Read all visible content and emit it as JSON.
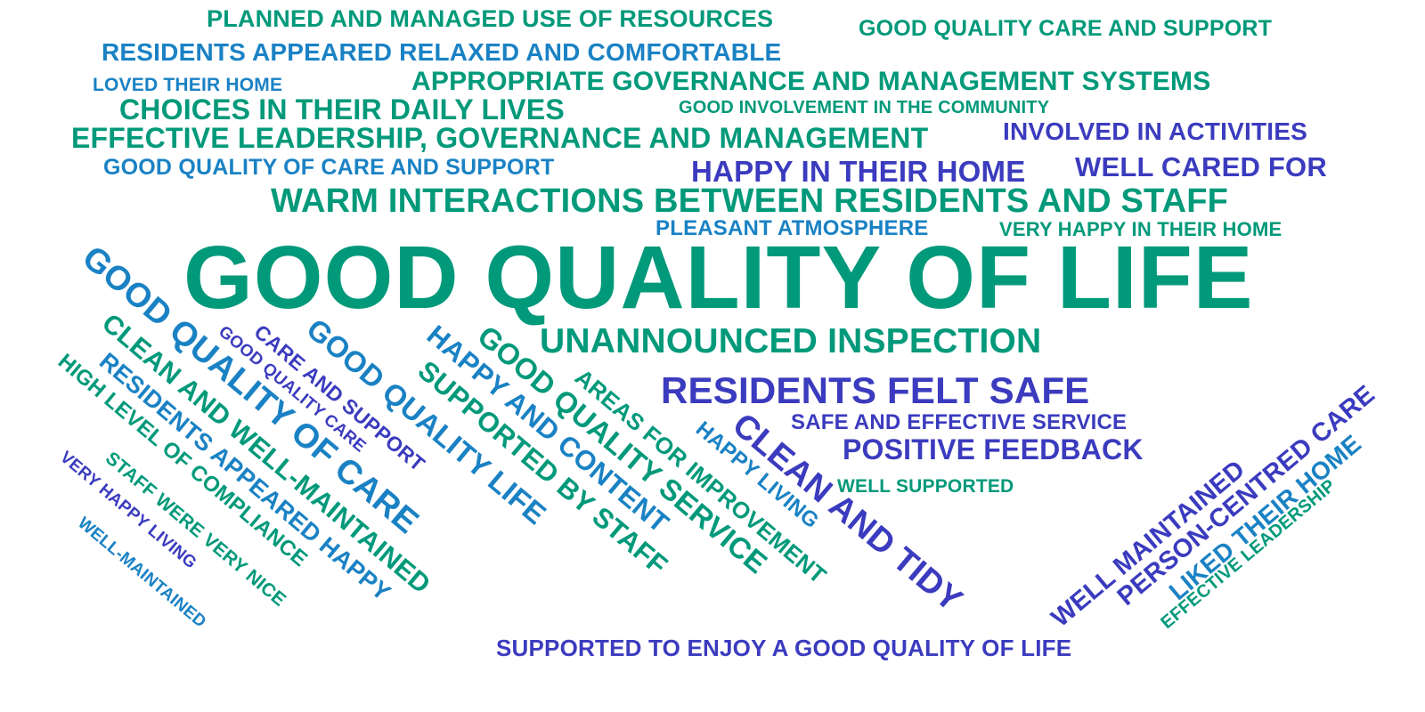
{
  "phrases": {
    "planned_resources": "PLANNED AND MANAGED USE OF RESOURCES",
    "good_quality_care_and_support": "GOOD QUALITY CARE AND SUPPORT",
    "residents_relaxed": "RESIDENTS APPEARED RELAXED AND COMFORTABLE",
    "loved_home": "LOVED THEIR HOME",
    "appropriate_governance": "APPROPRIATE GOVERNANCE AND MANAGEMENT SYSTEMS",
    "choices_daily": "CHOICES IN THEIR DAILY LIVES",
    "good_involvement": "GOOD INVOLVEMENT IN THE COMMUNITY",
    "effective_leadership_gov": "EFFECTIVE LEADERSHIP, GOVERNANCE AND MANAGEMENT",
    "involved_activities": "INVOLVED IN ACTIVITIES",
    "good_quality_of_care_and_support": "GOOD QUALITY OF CARE AND SUPPORT",
    "happy_in_home": "HAPPY IN THEIR HOME",
    "well_cared_for": "WELL CARED FOR",
    "warm_interactions": "WARM INTERACTIONS BETWEEN RESIDENTS AND STAFF",
    "pleasant_atmosphere": "PLEASANT ATMOSPHERE",
    "very_happy_home": "VERY HAPPY IN THEIR HOME",
    "good_quality_of_life": "GOOD QUALITY OF LIFE",
    "unannounced_inspection": "UNANNOUNCED INSPECTION",
    "residents_felt_safe": "RESIDENTS FELT SAFE",
    "safe_effective_service": "SAFE AND EFFECTIVE SERVICE",
    "positive_feedback": "POSITIVE FEEDBACK",
    "well_supported": "WELL SUPPORTED",
    "supported_to_enjoy": "SUPPORTED TO ENJOY A GOOD QUALITY OF LIFE",
    "diag_good_quality_of_care": "GOOD QUALITY OF CARE",
    "diag_clean_well_maintained": "CLEAN AND WELL-MAINTAINED",
    "diag_residents_appeared_happy": "RESIDENTS APPEARED HAPPY",
    "diag_high_level_compliance": "HIGH LEVEL OF COMPLIANCE",
    "diag_staff_very_nice": "STAFF WERE VERY NICE",
    "diag_very_happy_living": "VERY HAPPY LIVING",
    "diag_well_maintained_hyphen": "WELL-MAINTAINED",
    "diag_good_quality_care": "GOOD QUALITY CARE",
    "diag_care_and_support": "CARE AND SUPPORT",
    "diag_good_quality_life": "GOOD QUALITY LIFE",
    "diag_happy_and_content": "HAPPY AND CONTENT",
    "diag_supported_by_staff": "SUPPORTED BY STAFF",
    "diag_good_quality_service": "GOOD QUALITY SERVICE",
    "diag_areas_improvement": "AREAS FOR IMPROVEMENT",
    "diag_happy_living": "HAPPY LIVING",
    "diag_clean_and_tidy": "CLEAN AND TIDY",
    "up_well_maintained": "WELL MAINTAINED",
    "up_person_centred": "PERSON-CENTRED CARE",
    "up_liked_home": "LIKED THEIR HOME",
    "up_effective_leadership": "EFFECTIVE LEADERSHIP"
  },
  "colors": {
    "teal": "#00997a",
    "blue": "#1a82c4",
    "indigo": "#3b3bbf",
    "background": "#ffffff"
  }
}
